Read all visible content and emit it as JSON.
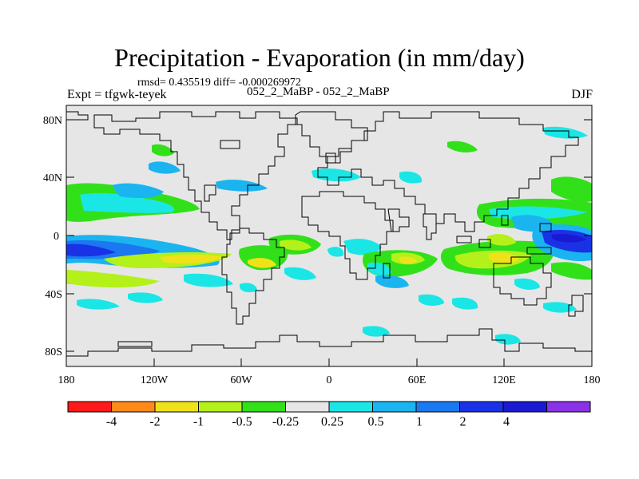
{
  "title": "Precipitation - Evaporation (in mm/day)",
  "stats": "rmsd= 0.435519 diff= -0.000269972",
  "experiment": "Expt = tfgwk-teyek",
  "cases": "052_2_MaBP - 052_2_MaBP",
  "season": "DJF",
  "lat_ticks": [
    "80N",
    "40N",
    "0",
    "40S",
    "80S"
  ],
  "lon_ticks": [
    "180",
    "120W",
    "60W",
    "0",
    "60E",
    "120E",
    "180"
  ],
  "colorbar": {
    "colors": [
      "#ff1a1a",
      "#ff8a1a",
      "#f0e21a",
      "#b4f01a",
      "#32e01a",
      "#e6e6e6",
      "#1ae6e6",
      "#1ab4f0",
      "#1a78f0",
      "#1a32e6",
      "#1a1ad2",
      "#8c32e6"
    ],
    "labels": [
      "-4",
      "-2",
      "-1",
      "-0.5",
      "-0.25",
      "0.25",
      "0.5",
      "1",
      "2",
      "4"
    ]
  },
  "map_colors": {
    "background": "#e6e6e6",
    "coast": "#000000"
  }
}
